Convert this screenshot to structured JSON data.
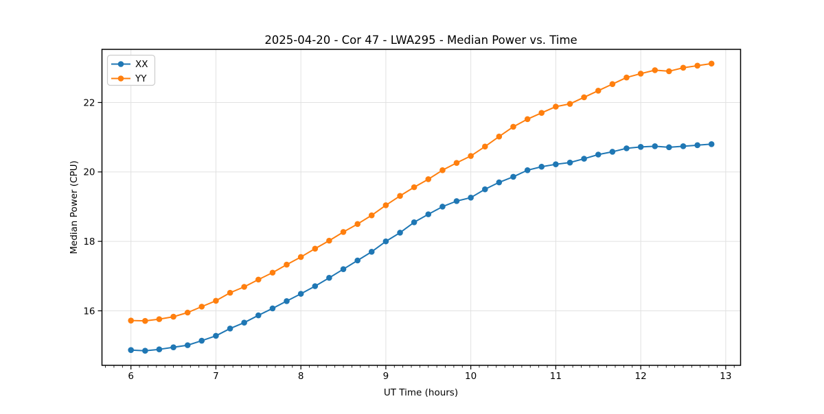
{
  "chart_data": {
    "type": "line",
    "title": "2025-04-20 - Cor 47 - LWA295 - Median Power vs. Time",
    "xlabel": "UT Time (hours)",
    "ylabel": "Median Power (CPU)",
    "xlim": [
      5.659,
      13.175
    ],
    "ylim": [
      14.43,
      23.53
    ],
    "xticks": [
      6,
      7,
      8,
      9,
      10,
      11,
      12,
      13
    ],
    "yticks": [
      16,
      18,
      20,
      22
    ],
    "x_minor_tick_step": 0.1,
    "grid": true,
    "legend_position": "upper left",
    "x": [
      6.0,
      6.167,
      6.333,
      6.5,
      6.667,
      6.833,
      7.0,
      7.167,
      7.333,
      7.5,
      7.667,
      7.833,
      8.0,
      8.167,
      8.333,
      8.5,
      8.667,
      8.833,
      9.0,
      9.167,
      9.333,
      9.5,
      9.667,
      9.833,
      10.0,
      10.167,
      10.333,
      10.5,
      10.667,
      10.833,
      11.0,
      11.167,
      11.333,
      11.5,
      11.667,
      11.833,
      12.0,
      12.167,
      12.333,
      12.5,
      12.667,
      12.833
    ],
    "series": [
      {
        "name": "XX",
        "color": "#1f77b4",
        "values": [
          14.87,
          14.85,
          14.89,
          14.95,
          15.01,
          15.14,
          15.28,
          15.49,
          15.66,
          15.87,
          16.07,
          16.28,
          16.49,
          16.71,
          16.95,
          17.2,
          17.45,
          17.7,
          18.0,
          18.25,
          18.55,
          18.78,
          19.0,
          19.16,
          19.26,
          19.5,
          19.7,
          19.86,
          20.05,
          20.15,
          20.22,
          20.27,
          20.38,
          20.5,
          20.58,
          20.68,
          20.72,
          20.74,
          20.71,
          20.74,
          20.77,
          20.8
        ]
      },
      {
        "name": "YY",
        "color": "#ff7f0e",
        "values": [
          15.72,
          15.71,
          15.76,
          15.83,
          15.95,
          16.12,
          16.29,
          16.52,
          16.69,
          16.9,
          17.1,
          17.33,
          17.55,
          17.79,
          18.02,
          18.27,
          18.5,
          18.75,
          19.04,
          19.31,
          19.56,
          19.79,
          20.05,
          20.26,
          20.46,
          20.73,
          21.02,
          21.3,
          21.52,
          21.7,
          21.88,
          21.96,
          22.15,
          22.34,
          22.53,
          22.72,
          22.83,
          22.93,
          22.9,
          23.0,
          23.06,
          23.12
        ]
      }
    ]
  }
}
